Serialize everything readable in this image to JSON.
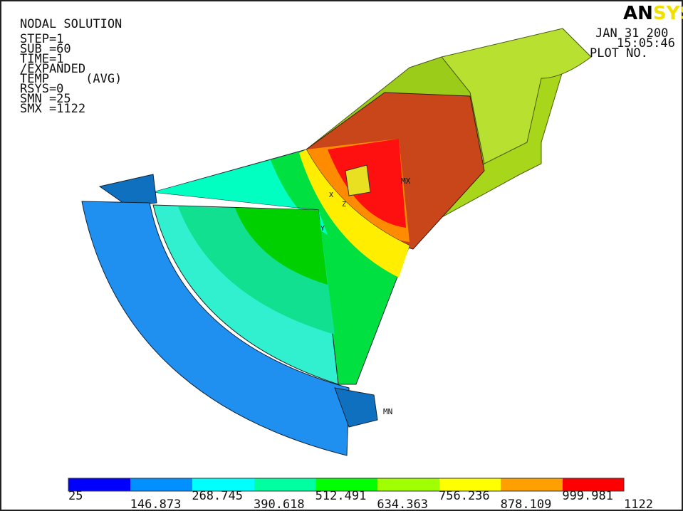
{
  "header": {
    "title": "NODAL SOLUTION",
    "lines": [
      "STEP=1",
      "SUB =60",
      "TIME=1",
      "/EXPANDED",
      "TEMP     (AVG)",
      "RSYS=0",
      "SMN =25",
      "SMX =1122"
    ]
  },
  "logo": {
    "left": "AN",
    "right": "SYS"
  },
  "stamp": {
    "date": "JAN 31 200",
    "time": "15:05:46",
    "plot": "PLOT NO."
  },
  "markers": {
    "max": "MX",
    "min": "MN",
    "axes": [
      "X",
      "Y",
      "Z"
    ]
  },
  "legend": {
    "labels": [
      "25",
      "146.873",
      "268.745",
      "390.618",
      "512.491",
      "634.363",
      "756.236",
      "878.109",
      "999.981",
      "1122"
    ]
  }
}
